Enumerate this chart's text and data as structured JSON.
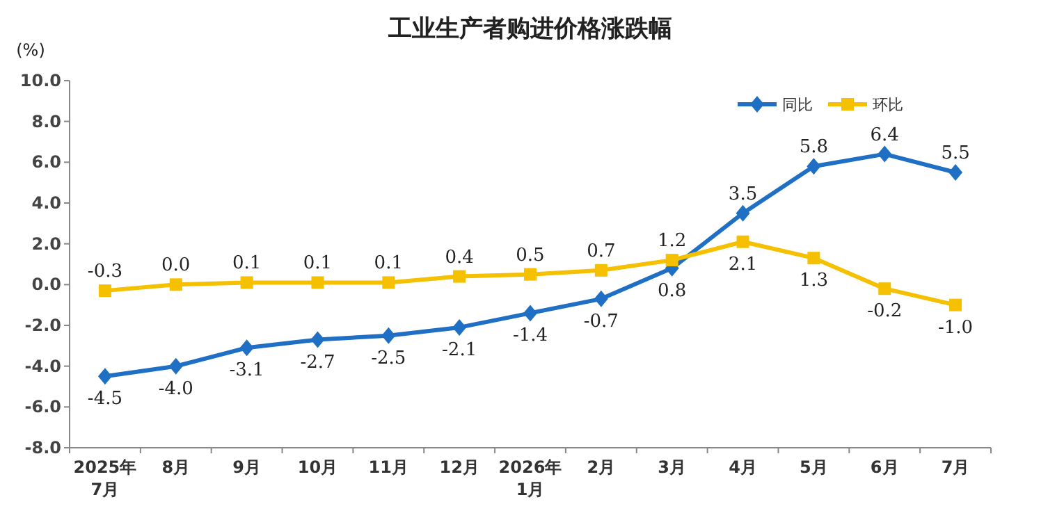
{
  "chart_data": {
    "type": "line",
    "title": "工业生产者购进价格涨跌幅",
    "ylabel": "(%)",
    "categories": [
      "2025年\n7月",
      "8月",
      "9月",
      "10月",
      "11月",
      "12月",
      "2026年\n1月",
      "2月",
      "3月",
      "4月",
      "5月",
      "6月",
      "7月"
    ],
    "series": [
      {
        "name": "同比",
        "color": "#1f6fc5",
        "marker": "diamond",
        "values": [
          -4.5,
          -4.0,
          -3.1,
          -2.7,
          -2.5,
          -2.1,
          -1.4,
          -0.7,
          0.8,
          3.5,
          5.8,
          6.4,
          5.5
        ],
        "value_labels": [
          "-4.5",
          "-4.0",
          "-3.1",
          "-2.7",
          "-2.5",
          "-2.1",
          "-1.4",
          "-0.7",
          "0.8",
          "3.5",
          "5.8",
          "6.4",
          "5.5"
        ]
      },
      {
        "name": "环比",
        "color": "#f5c000",
        "marker": "square",
        "values": [
          -0.3,
          0.0,
          0.1,
          0.1,
          0.1,
          0.4,
          0.5,
          0.7,
          1.2,
          2.1,
          1.3,
          -0.2,
          -1.0
        ],
        "value_labels": [
          "-0.3",
          "0.0",
          "0.1",
          "0.1",
          "0.1",
          "0.4",
          "0.5",
          "0.7",
          "1.2",
          "2.1",
          "1.3",
          "-0.2",
          "-1.0"
        ]
      }
    ],
    "ylim": [
      -8,
      10
    ],
    "yticks": [
      {
        "value": -8,
        "label": "-8.0"
      },
      {
        "value": -6,
        "label": "-6.0"
      },
      {
        "value": -4,
        "label": "-4.0"
      },
      {
        "value": -2,
        "label": "-2.0"
      },
      {
        "value": 0,
        "label": "0.0"
      },
      {
        "value": 2,
        "label": "2.0"
      },
      {
        "value": 4,
        "label": "4.0"
      },
      {
        "value": 6,
        "label": "6.0"
      },
      {
        "value": 8,
        "label": "8.0"
      },
      {
        "value": 10,
        "label": "10.0"
      }
    ],
    "legend": "top right",
    "grid": false,
    "line_style": "solid"
  }
}
